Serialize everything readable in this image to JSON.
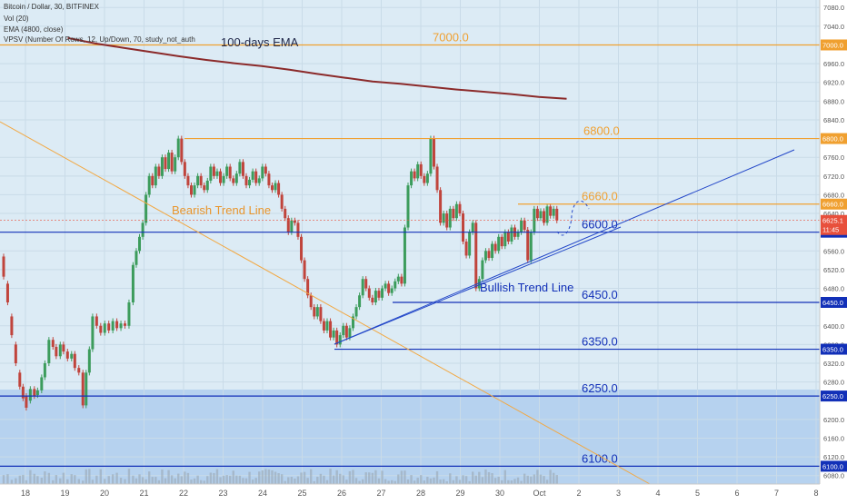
{
  "header": {
    "symbol": "Bitcoin / Dollar, 30, BITFINEX",
    "vol": "Vol (20)",
    "ema": "EMA (4800, close)",
    "vpsv": "VPSV (Number Of Rows, 12, Up/Down, 70, study_not_auth"
  },
  "colors": {
    "background": "#dcebf5",
    "lower_zone": "#b6d2ef",
    "horizontal_orange": "#f0a030",
    "horizontal_blue": "#1230b8",
    "trend_blue": "#2246c8",
    "bearish_trend": "#f2a843",
    "ema": "#8b2a2a",
    "candle_up": "#3c9c5c",
    "candle_down": "#c0443c",
    "price_tag": "#e8503c",
    "volume": "#9aa7b2"
  },
  "chart_data": {
    "type": "candlestick",
    "title": "Bitcoin / Dollar, 30, BITFINEX",
    "x_tick_labels": [
      "18",
      "19",
      "20",
      "21",
      "22",
      "23",
      "24",
      "25",
      "26",
      "27",
      "28",
      "29",
      "30",
      "Oct",
      "2",
      "3",
      "4",
      "5",
      "6",
      "7",
      "8"
    ],
    "y_tick_labels": [
      7080,
      7040,
      6960,
      6920,
      6880,
      6840,
      6760,
      6720,
      6680,
      6640,
      6560,
      6520,
      6480,
      6400,
      6360,
      6320,
      6280,
      6200,
      6160,
      6120,
      6080
    ],
    "ylim": [
      6062,
      7096
    ],
    "last_price": "6625.1",
    "countdown": "11:45",
    "horizontal_levels": [
      {
        "value": 7000,
        "label": "7000.0",
        "tag": "7000.0",
        "color_key": "horizontal_orange"
      },
      {
        "value": 6800,
        "label": "6800.0",
        "tag": "6800.0",
        "color_key": "horizontal_orange"
      },
      {
        "value": 6660,
        "label": "6660.0",
        "tag": "6660.0",
        "color_key": "horizontal_orange"
      },
      {
        "value": 6600,
        "label": "6600.0",
        "tag": "6600.0",
        "color_key": "horizontal_blue"
      },
      {
        "value": 6450,
        "label": "6450.0",
        "tag": "6450.0",
        "color_key": "horizontal_blue"
      },
      {
        "value": 6350,
        "label": "6350.0",
        "tag": "6350.0",
        "color_key": "horizontal_blue"
      },
      {
        "value": 6250,
        "label": "6250.0",
        "tag": "6250.0",
        "color_key": "horizontal_blue"
      },
      {
        "value": 6100,
        "label": "6100.0",
        "tag": "6100.0",
        "color_key": "horizontal_blue"
      }
    ],
    "annotations": {
      "ema_label": "100-days EMA",
      "bearish_label": "Bearish Trend Line",
      "bullish_label": "Bullish Trend Line"
    },
    "ema_points": [
      [
        -1.0,
        7015
      ],
      [
        0.0,
        7003
      ],
      [
        1.0,
        6994
      ],
      [
        2.0,
        6985
      ],
      [
        3.0,
        6976
      ],
      [
        4.0,
        6968
      ],
      [
        5.0,
        6961
      ],
      [
        6.0,
        6955
      ],
      [
        7.0,
        6947
      ],
      [
        8.0,
        6938
      ],
      [
        9.0,
        6930
      ],
      [
        10.0,
        6922
      ],
      [
        11.0,
        6917
      ],
      [
        12.0,
        6911
      ],
      [
        13.0,
        6905
      ],
      [
        14.0,
        6900
      ],
      [
        15.0,
        6895
      ],
      [
        16.0,
        6889
      ],
      [
        17.0,
        6885
      ]
    ],
    "candles": [
      [
        0.0,
        6548,
        6505
      ],
      [
        0.5,
        6490,
        6450
      ],
      [
        1.0,
        6420,
        6380
      ],
      [
        1.5,
        6360,
        6320
      ],
      [
        2.0,
        6300,
        6270
      ],
      [
        2.4,
        6270,
        6245
      ],
      [
        2.8,
        6250,
        6225
      ],
      [
        3.3,
        6240,
        6265
      ],
      [
        3.8,
        6265,
        6250
      ],
      [
        4.2,
        6252,
        6262
      ],
      [
        4.7,
        6262,
        6290
      ],
      [
        5.1,
        6290,
        6320
      ],
      [
        5.6,
        6320,
        6370
      ],
      [
        6.1,
        6370,
        6355
      ],
      [
        6.5,
        6355,
        6335
      ],
      [
        7.0,
        6335,
        6360
      ],
      [
        7.4,
        6360,
        6345
      ],
      [
        7.9,
        6345,
        6330
      ],
      [
        8.4,
        6330,
        6340
      ],
      [
        8.8,
        6340,
        6310
      ],
      [
        9.3,
        6310,
        6300
      ],
      [
        9.8,
        6300,
        6230
      ],
      [
        10.2,
        6230,
        6300
      ],
      [
        10.6,
        6300,
        6350
      ],
      [
        11.0,
        6350,
        6420
      ],
      [
        11.5,
        6420,
        6400
      ],
      [
        12.0,
        6400,
        6385
      ],
      [
        12.5,
        6385,
        6405
      ],
      [
        13.0,
        6405,
        6390
      ],
      [
        13.5,
        6390,
        6410
      ],
      [
        14.0,
        6410,
        6395
      ],
      [
        14.5,
        6395,
        6405
      ],
      [
        15.0,
        6405,
        6400
      ],
      [
        15.5,
        6400,
        6450
      ],
      [
        16.0,
        6450,
        6530
      ],
      [
        16.4,
        6530,
        6560
      ],
      [
        16.8,
        6560,
        6590
      ],
      [
        17.2,
        6590,
        6620
      ],
      [
        17.6,
        6620,
        6680
      ],
      [
        18.0,
        6680,
        6720
      ],
      [
        18.4,
        6720,
        6700
      ],
      [
        18.8,
        6700,
        6740
      ],
      [
        19.2,
        6740,
        6720
      ],
      [
        19.6,
        6720,
        6760
      ],
      [
        20.0,
        6760,
        6735
      ],
      [
        20.4,
        6735,
        6770
      ],
      [
        20.8,
        6770,
        6730
      ],
      [
        21.2,
        6730,
        6760
      ],
      [
        21.6,
        6760,
        6800
      ],
      [
        22.0,
        6800,
        6750
      ],
      [
        22.4,
        6750,
        6720
      ],
      [
        22.8,
        6720,
        6700
      ],
      [
        23.2,
        6700,
        6680
      ],
      [
        23.6,
        6680,
        6700
      ],
      [
        24.0,
        6700,
        6720
      ],
      [
        24.4,
        6720,
        6700
      ],
      [
        24.8,
        6700,
        6690
      ],
      [
        25.2,
        6690,
        6710
      ],
      [
        25.6,
        6710,
        6740
      ],
      [
        26.0,
        6740,
        6720
      ],
      [
        26.4,
        6720,
        6730
      ],
      [
        26.8,
        6730,
        6705
      ],
      [
        27.2,
        6705,
        6720
      ],
      [
        27.6,
        6720,
        6740
      ],
      [
        28.0,
        6740,
        6715
      ],
      [
        28.4,
        6715,
        6705
      ],
      [
        28.8,
        6705,
        6725
      ],
      [
        29.2,
        6725,
        6750
      ],
      [
        29.6,
        6750,
        6720
      ],
      [
        30.0,
        6720,
        6700
      ],
      [
        30.4,
        6700,
        6712
      ],
      [
        30.8,
        6712,
        6730
      ],
      [
        31.2,
        6730,
        6705
      ],
      [
        31.6,
        6705,
        6715
      ],
      [
        32.0,
        6715,
        6740
      ],
      [
        32.4,
        6740,
        6725
      ],
      [
        32.8,
        6725,
        6700
      ],
      [
        33.2,
        6700,
        6690
      ],
      [
        33.6,
        6690,
        6705
      ],
      [
        34.0,
        6705,
        6680
      ],
      [
        34.4,
        6680,
        6650
      ],
      [
        34.8,
        6650,
        6630
      ],
      [
        35.2,
        6630,
        6600
      ],
      [
        35.6,
        6600,
        6625
      ],
      [
        36.0,
        6625,
        6620
      ],
      [
        36.4,
        6620,
        6590
      ],
      [
        36.8,
        6590,
        6540
      ],
      [
        37.2,
        6540,
        6500
      ],
      [
        37.6,
        6500,
        6465
      ],
      [
        38.0,
        6465,
        6440
      ],
      [
        38.4,
        6440,
        6420
      ],
      [
        38.8,
        6420,
        6440
      ],
      [
        39.2,
        6440,
        6410
      ],
      [
        39.6,
        6410,
        6390
      ],
      [
        40.0,
        6390,
        6410
      ],
      [
        40.4,
        6410,
        6375
      ],
      [
        40.8,
        6375,
        6390
      ],
      [
        41.2,
        6390,
        6360
      ],
      [
        41.6,
        6360,
        6380
      ],
      [
        42.0,
        6380,
        6400
      ],
      [
        42.4,
        6400,
        6375
      ],
      [
        42.8,
        6375,
        6395
      ],
      [
        43.2,
        6395,
        6420
      ],
      [
        43.6,
        6420,
        6440
      ],
      [
        44.0,
        6440,
        6465
      ],
      [
        44.4,
        6465,
        6500
      ],
      [
        44.8,
        6500,
        6480
      ],
      [
        45.2,
        6480,
        6460
      ],
      [
        45.6,
        6460,
        6450
      ],
      [
        46.0,
        6450,
        6475
      ],
      [
        46.4,
        6475,
        6460
      ],
      [
        46.8,
        6460,
        6480
      ],
      [
        47.2,
        6480,
        6490
      ],
      [
        47.6,
        6490,
        6470
      ],
      [
        48.0,
        6470,
        6480
      ],
      [
        48.4,
        6480,
        6495
      ],
      [
        48.8,
        6495,
        6505
      ],
      [
        49.2,
        6505,
        6490
      ],
      [
        49.6,
        6490,
        6610
      ],
      [
        50.0,
        6610,
        6700
      ],
      [
        50.4,
        6700,
        6730
      ],
      [
        50.8,
        6730,
        6715
      ],
      [
        51.2,
        6715,
        6745
      ],
      [
        51.6,
        6745,
        6720
      ],
      [
        52.0,
        6720,
        6705
      ],
      [
        52.4,
        6705,
        6725
      ],
      [
        52.8,
        6725,
        6800
      ],
      [
        53.2,
        6800,
        6740
      ],
      [
        53.6,
        6740,
        6690
      ],
      [
        54.0,
        6690,
        6620
      ],
      [
        54.4,
        6620,
        6640
      ],
      [
        54.8,
        6640,
        6610
      ],
      [
        55.2,
        6610,
        6650
      ],
      [
        55.6,
        6650,
        6630
      ],
      [
        56.0,
        6630,
        6660
      ],
      [
        56.4,
        6660,
        6640
      ],
      [
        56.8,
        6640,
        6580
      ],
      [
        57.2,
        6580,
        6550
      ],
      [
        57.6,
        6550,
        6600
      ],
      [
        58.0,
        6600,
        6620
      ],
      [
        58.4,
        6620,
        6480
      ],
      [
        58.8,
        6480,
        6500
      ],
      [
        59.2,
        6500,
        6540
      ],
      [
        59.6,
        6540,
        6560
      ],
      [
        60.0,
        6560,
        6545
      ],
      [
        60.4,
        6545,
        6575
      ],
      [
        60.8,
        6575,
        6560
      ],
      [
        61.2,
        6560,
        6590
      ],
      [
        61.6,
        6590,
        6570
      ],
      [
        62.0,
        6570,
        6600
      ],
      [
        62.4,
        6600,
        6580
      ],
      [
        62.8,
        6580,
        6610
      ],
      [
        63.2,
        6610,
        6590
      ],
      [
        63.6,
        6590,
        6600
      ],
      [
        64.0,
        6600,
        6625
      ],
      [
        64.4,
        6625,
        6605
      ],
      [
        64.8,
        6605,
        6540
      ],
      [
        65.2,
        6540,
        6600
      ],
      [
        65.6,
        6600,
        6650
      ],
      [
        66.0,
        6650,
        6630
      ],
      [
        66.4,
        6630,
        6645
      ],
      [
        66.8,
        6645,
        6620
      ],
      [
        67.2,
        6620,
        6655
      ],
      [
        67.6,
        6655,
        6635
      ],
      [
        68.0,
        6635,
        6650
      ],
      [
        68.4,
        6650,
        6625
      ]
    ]
  }
}
